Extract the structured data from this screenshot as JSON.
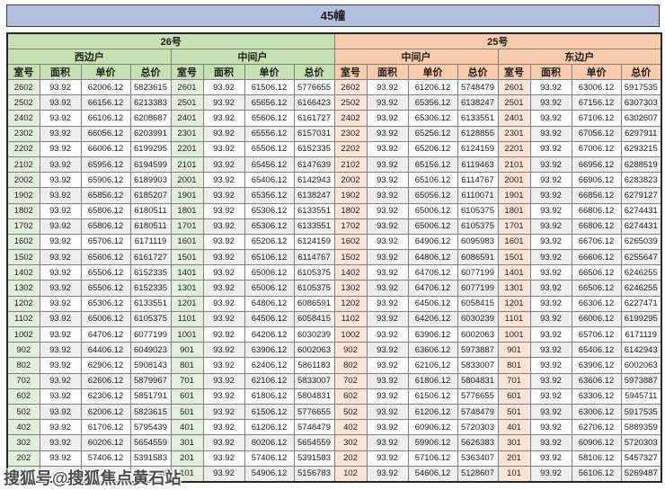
{
  "title": "45幢",
  "colors": {
    "banner_bg": "#b3c1e1",
    "green_header": "#c6e0b4",
    "green_cell": "#e2efda",
    "orange_header": "#f8cbad",
    "orange_cell": "#fce4d6",
    "stripe_white": "#fdfdfd",
    "stripe_gray": "#eeeeee",
    "border": "#7f7f7f",
    "outer_border": "#262626",
    "text": "#1c1c1c",
    "watermark": "#4d4d4d"
  },
  "table": {
    "buildings": [
      {
        "label": "26号",
        "units": [
          "西边户",
          "中间户"
        ]
      },
      {
        "label": "25号",
        "units": [
          "中间户",
          "东边户"
        ]
      }
    ],
    "column_headers": [
      "室号",
      "面积",
      "单价",
      "总价"
    ],
    "rows": [
      [
        "2602",
        "93.92",
        "62006.12",
        "5823615",
        "2601",
        "93.92",
        "61506.12",
        "5776655",
        "2602",
        "93.92",
        "61206.12",
        "5748479",
        "2601",
        "93.92",
        "63006.12",
        "5917535"
      ],
      [
        "2502",
        "93.92",
        "66156.12",
        "6213383",
        "2501",
        "93.92",
        "65656.12",
        "6166423",
        "2502",
        "93.92",
        "65356.12",
        "6138247",
        "2501",
        "93.92",
        "67156.12",
        "6307303"
      ],
      [
        "2402",
        "93.92",
        "66106.12",
        "6208687",
        "2401",
        "93.92",
        "65606.12",
        "6161727",
        "2402",
        "93.92",
        "65306.12",
        "6133551",
        "2401",
        "93.92",
        "67106.12",
        "6302607"
      ],
      [
        "2302",
        "93.92",
        "66056.12",
        "6203991",
        "2301",
        "93.92",
        "65556.12",
        "6157031",
        "2302",
        "93.92",
        "65256.12",
        "6128855",
        "2301",
        "93.92",
        "67056.12",
        "6297911"
      ],
      [
        "2202",
        "93.92",
        "66006.12",
        "6199295",
        "2201",
        "93.92",
        "65506.12",
        "6152335",
        "2202",
        "93.92",
        "65206.12",
        "6124159",
        "2201",
        "93.92",
        "67006.12",
        "6293215"
      ],
      [
        "2102",
        "93.92",
        "65956.12",
        "6194599",
        "2101",
        "93.92",
        "65456.12",
        "6147639",
        "2102",
        "93.92",
        "65156.12",
        "6119463",
        "2101",
        "93.92",
        "66956.12",
        "6288519"
      ],
      [
        "2002",
        "93.92",
        "65906.12",
        "6189903",
        "2001",
        "93.92",
        "65406.12",
        "6142943",
        "2002",
        "93.92",
        "65106.12",
        "6114767",
        "2001",
        "93.92",
        "66906.12",
        "6283823"
      ],
      [
        "1902",
        "93.92",
        "65856.12",
        "6185207",
        "1901",
        "93.92",
        "65356.12",
        "6138247",
        "1902",
        "93.92",
        "65056.12",
        "6110071",
        "1901",
        "93.92",
        "66856.12",
        "6279127"
      ],
      [
        "1802",
        "93.92",
        "65806.12",
        "6180511",
        "1801",
        "93.92",
        "65306.12",
        "6133551",
        "1802",
        "93.92",
        "65006.12",
        "6105375",
        "1801",
        "93.92",
        "66806.12",
        "6274431"
      ],
      [
        "1702",
        "93.92",
        "65806.12",
        "6180511",
        "1701",
        "93.92",
        "65306.12",
        "6133551",
        "1702",
        "93.92",
        "65006.12",
        "6105375",
        "1701",
        "93.92",
        "66806.12",
        "6274431"
      ],
      [
        "1602",
        "93.92",
        "65706.12",
        "6171119",
        "1601",
        "93.92",
        "65206.12",
        "6124159",
        "1602",
        "93.92",
        "64906.12",
        "6095983",
        "1601",
        "93.92",
        "66706.12",
        "6265039"
      ],
      [
        "1502",
        "93.92",
        "65606.12",
        "6161727",
        "1501",
        "93.92",
        "65106.12",
        "6114767",
        "1502",
        "93.92",
        "64806.12",
        "6086591",
        "1501",
        "93.92",
        "66606.12",
        "6255647"
      ],
      [
        "1402",
        "93.92",
        "65506.12",
        "6152335",
        "1401",
        "93.92",
        "65006.12",
        "6105375",
        "1402",
        "93.92",
        "64706.12",
        "6077199",
        "1401",
        "93.92",
        "66506.12",
        "6246255"
      ],
      [
        "1302",
        "93.92",
        "65506.12",
        "6152335",
        "1301",
        "93.92",
        "65006.12",
        "6105375",
        "1302",
        "93.92",
        "64706.12",
        "6077199",
        "1301",
        "93.92",
        "66506.12",
        "6246255"
      ],
      [
        "1202",
        "93.92",
        "65306.12",
        "6133551",
        "1201",
        "93.92",
        "64806.12",
        "6086591",
        "1202",
        "93.92",
        "64506.12",
        "6058415",
        "1201",
        "93.92",
        "66306.12",
        "6227471"
      ],
      [
        "1102",
        "93.92",
        "65006.12",
        "6105375",
        "1101",
        "93.92",
        "64506.12",
        "6058415",
        "1102",
        "93.92",
        "64206.12",
        "6030239",
        "1101",
        "93.92",
        "66006.12",
        "6199295"
      ],
      [
        "1002",
        "93.92",
        "64706.12",
        "6077199",
        "1001",
        "93.92",
        "64206.12",
        "6030239",
        "1002",
        "93.92",
        "63906.12",
        "6002063",
        "1001",
        "93.92",
        "65706.12",
        "6171119"
      ],
      [
        "902",
        "93.92",
        "64406.12",
        "6049023",
        "901",
        "93.92",
        "63906.12",
        "6002063",
        "902",
        "93.92",
        "63606.12",
        "5973887",
        "901",
        "93.92",
        "65406.12",
        "6142943"
      ],
      [
        "802",
        "93.92",
        "62906.12",
        "5908143",
        "801",
        "93.92",
        "62406.12",
        "5861183",
        "802",
        "93.92",
        "62106.12",
        "5833007",
        "801",
        "93.92",
        "63906.12",
        "6002063"
      ],
      [
        "702",
        "93.92",
        "62606.12",
        "5879967",
        "701",
        "93.92",
        "62106.12",
        "5833007",
        "702",
        "93.92",
        "61806.12",
        "5804831",
        "701",
        "93.92",
        "63606.12",
        "5973887"
      ],
      [
        "602",
        "93.92",
        "62306.12",
        "5851791",
        "601",
        "93.92",
        "61806.12",
        "5804831",
        "602",
        "93.92",
        "61506.12",
        "5776655",
        "601",
        "93.92",
        "63306.12",
        "5945711"
      ],
      [
        "502",
        "93.92",
        "62006.12",
        "5823615",
        "501",
        "93.92",
        "61506.12",
        "5776655",
        "502",
        "93.92",
        "61206.12",
        "5748479",
        "501",
        "93.92",
        "63006.12",
        "5917535"
      ],
      [
        "402",
        "93.92",
        "61706.12",
        "5795439",
        "401",
        "93.92",
        "61206.12",
        "5748479",
        "402",
        "93.92",
        "60906.12",
        "5720303",
        "401",
        "93.92",
        "62706.12",
        "5889359"
      ],
      [
        "302",
        "93.92",
        "60206.12",
        "5654559",
        "301",
        "93.92",
        "60206.12",
        "5654559",
        "302",
        "93.92",
        "59906.12",
        "5626383",
        "301",
        "93.92",
        "60906.12",
        "5720303"
      ],
      [
        "202",
        "93.92",
        "57406.12",
        "5391583",
        "201",
        "93.92",
        "57406.12",
        "5391583",
        "202",
        "93.92",
        "57106.12",
        "5363407",
        "201",
        "93.92",
        "58106.12",
        "5457327"
      ],
      [
        "102",
        "93.92",
        "55406.12",
        "5203743",
        "101",
        "93.92",
        "54906.12",
        "5156783",
        "102",
        "93.92",
        "54606.12",
        "5128607",
        "101",
        "93.92",
        "56106.12",
        "5269487"
      ]
    ]
  },
  "watermark": {
    "text": "搜狐号@搜狐焦点黄石站"
  }
}
